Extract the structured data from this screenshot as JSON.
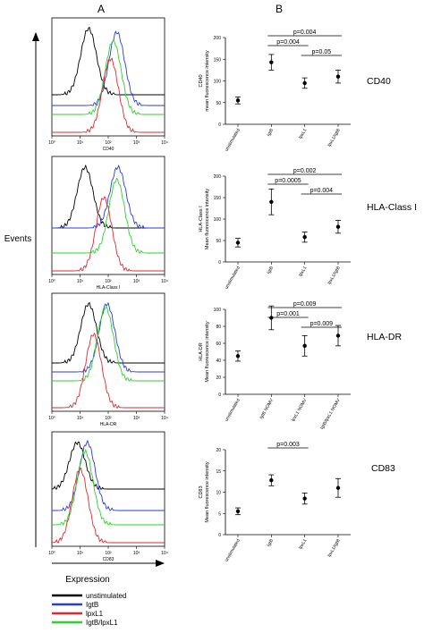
{
  "panel_labels": [
    "A",
    "B"
  ],
  "axis_labels": {
    "events": "Events",
    "expression": "Expression"
  },
  "legend": [
    {
      "label": "unstimulated",
      "color": "#000000"
    },
    {
      "label": "IgtB",
      "color": "#2b3bd6"
    },
    {
      "label": "lpxL1",
      "color": "#e3282d"
    },
    {
      "label": "IgtB/lpxL1",
      "color": "#2ed22e"
    }
  ],
  "histogram_xticks": [
    "10⁰",
    "10¹",
    "10²",
    "10³",
    "10⁴"
  ],
  "chart_data": [
    {
      "type": "line",
      "panel": "A",
      "marker": "CD40",
      "xlabel": "CD40",
      "x_scale": "log",
      "xlim": [
        1,
        10000
      ],
      "series": [
        {
          "name": "unstimulated",
          "peak_x": 20
        },
        {
          "name": "IgtB",
          "peak_x": 200
        },
        {
          "name": "lpxL1",
          "peak_x": 120
        },
        {
          "name": "IgtB/lpxL1",
          "peak_x": 150
        }
      ]
    },
    {
      "type": "scatter",
      "panel": "B",
      "marker": "CD40",
      "ylabel": "CD40\nmean fluorescence intensity",
      "ylim": [
        0,
        200
      ],
      "yticks": [
        0,
        50,
        100,
        150,
        200
      ],
      "categories": [
        "unstimulated",
        "IgtB",
        "lpxL1",
        "lpxL1/IgtB"
      ],
      "values": [
        55,
        143,
        95,
        110
      ],
      "errors": [
        8,
        18,
        12,
        15
      ],
      "annotations": [
        {
          "text": "p=0.004",
          "from": 1,
          "to": 3
        },
        {
          "text": "p=0.004",
          "from": 1,
          "to": 2
        },
        {
          "text": "p=0.05",
          "from": 2,
          "to": 3
        }
      ]
    },
    {
      "type": "line",
      "panel": "A",
      "marker": "HLA-Class I",
      "xlabel": "HLA-Class I",
      "x_scale": "log",
      "xlim": [
        1,
        10000
      ],
      "series": [
        {
          "name": "unstimulated",
          "peak_x": 15
        },
        {
          "name": "IgtB",
          "peak_x": 220
        },
        {
          "name": "lpxL1",
          "peak_x": 70
        },
        {
          "name": "IgtB/lpxL1",
          "peak_x": 200
        }
      ]
    },
    {
      "type": "scatter",
      "panel": "B",
      "marker": "HLA-Class I",
      "ylabel": "HLA-Class I\nMean fluorescence intensity",
      "ylim": [
        0,
        200
      ],
      "yticks": [
        0,
        50,
        100,
        150,
        200
      ],
      "categories": [
        "unstimulated",
        "IgtB",
        "lpxL1",
        "lpxL1/IgtB"
      ],
      "values": [
        45,
        140,
        58,
        82
      ],
      "errors": [
        10,
        30,
        12,
        15
      ],
      "annotations": [
        {
          "text": "p=0.002",
          "from": 1,
          "to": 3
        },
        {
          "text": "p=0.0005",
          "from": 1,
          "to": 2
        },
        {
          "text": "p=0.004",
          "from": 2,
          "to": 3
        }
      ]
    },
    {
      "type": "line",
      "panel": "A",
      "marker": "HLA-DR",
      "xlabel": "HLA-DR",
      "x_scale": "log",
      "xlim": [
        1,
        10000
      ],
      "series": [
        {
          "name": "unstimulated",
          "peak_x": 20
        },
        {
          "name": "IgtB",
          "peak_x": 90
        },
        {
          "name": "lpxL1",
          "peak_x": 30
        },
        {
          "name": "IgtB/lpxL1",
          "peak_x": 80
        }
      ]
    },
    {
      "type": "scatter",
      "panel": "B",
      "marker": "HLA-DR",
      "ylabel": "HLA-DR\nMean fluorescence intensity",
      "ylim": [
        0,
        100
      ],
      "yticks": [
        0,
        20,
        40,
        60,
        80,
        100
      ],
      "categories": [
        "unstimulated",
        "IgtB NOMV",
        "lpxL1 NOMV",
        "IgtB/lpxL1 NOMV"
      ],
      "values": [
        45,
        90,
        57,
        69
      ],
      "errors": [
        6,
        14,
        12,
        12
      ],
      "annotations": [
        {
          "text": "p=0.009",
          "from": 1,
          "to": 3
        },
        {
          "text": "p=0.001",
          "from": 1,
          "to": 2
        },
        {
          "text": "p=0.009",
          "from": 2,
          "to": 3
        }
      ]
    },
    {
      "type": "line",
      "panel": "A",
      "marker": "CD83",
      "xlabel": "CD83",
      "x_scale": "log",
      "xlim": [
        1,
        10000
      ],
      "series": [
        {
          "name": "unstimulated",
          "peak_x": 8
        },
        {
          "name": "IgtB",
          "peak_x": 18
        },
        {
          "name": "lpxL1",
          "peak_x": 10
        },
        {
          "name": "IgtB/lpxL1",
          "peak_x": 15
        }
      ]
    },
    {
      "type": "scatter",
      "panel": "B",
      "marker": "CD83",
      "ylabel": "CD83\nMean fluorescence intensity",
      "ylim": [
        0,
        20
      ],
      "yticks": [
        0,
        5,
        10,
        15,
        20
      ],
      "categories": [
        "unstimulated",
        "IgtB",
        "lpxL1",
        "lpxL1/IgtB"
      ],
      "values": [
        5.5,
        12.8,
        8.5,
        11
      ],
      "errors": [
        0.8,
        1.3,
        1.3,
        2.2
      ],
      "annotations": [
        {
          "text": "p=0.003",
          "from": 1,
          "to": 2
        }
      ]
    }
  ]
}
